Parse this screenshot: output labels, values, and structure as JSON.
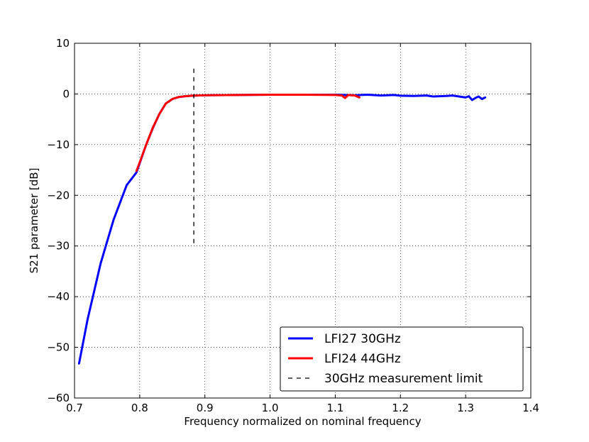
{
  "chart_data": {
    "type": "line",
    "xlabel": "Frequency normalized on nominal frequency",
    "ylabel": "S21 parameter [dB]",
    "xlim": [
      0.7,
      1.4
    ],
    "ylim": [
      -60,
      10
    ],
    "x_ticks": [
      "0.7",
      "0.8",
      "0.9",
      "1.0",
      "1.1",
      "1.2",
      "1.3",
      "1.4"
    ],
    "y_ticks": [
      "10",
      "0",
      "−10",
      "−20",
      "−30",
      "−40",
      "−50",
      "−60"
    ],
    "x_tick_values": [
      0.7,
      0.8,
      0.9,
      1.0,
      1.1,
      1.2,
      1.3,
      1.4
    ],
    "y_tick_values": [
      10,
      0,
      -10,
      -20,
      -30,
      -40,
      -50,
      -60
    ],
    "grid": true,
    "legend_position": "bottom-right",
    "series": [
      {
        "name": "LFI27 30GHz",
        "color": "#0000ff",
        "style": "solid",
        "x": [
          0.707,
          0.72,
          0.74,
          0.76,
          0.78,
          0.795,
          0.81,
          0.82,
          0.83,
          0.84,
          0.85,
          0.86,
          0.87,
          0.88,
          0.9,
          0.95,
          1.0,
          1.05,
          1.1,
          1.13,
          1.15,
          1.17,
          1.19,
          1.2,
          1.22,
          1.24,
          1.25,
          1.27,
          1.28,
          1.3,
          1.305,
          1.31,
          1.315,
          1.32,
          1.325,
          1.33
        ],
        "y": [
          -53.2,
          -44.5,
          -33.5,
          -24.8,
          -18.0,
          -15.5,
          -10.0,
          -6.8,
          -4.0,
          -1.9,
          -1.0,
          -0.6,
          -0.45,
          -0.35,
          -0.25,
          -0.2,
          -0.15,
          -0.15,
          -0.15,
          -0.25,
          -0.15,
          -0.3,
          -0.2,
          -0.35,
          -0.4,
          -0.3,
          -0.5,
          -0.4,
          -0.3,
          -0.7,
          -0.45,
          -1.2,
          -0.8,
          -0.5,
          -1.0,
          -0.7
        ]
      },
      {
        "name": "LFI24 44GHz",
        "color": "#ff0000",
        "style": "solid",
        "x": [
          0.795,
          0.8,
          0.81,
          0.82,
          0.83,
          0.84,
          0.85,
          0.86,
          0.87,
          0.88,
          0.9,
          0.95,
          1.0,
          1.05,
          1.1,
          1.11,
          1.115,
          1.12,
          1.13,
          1.137
        ],
        "y": [
          -15.2,
          -13.5,
          -10.0,
          -6.7,
          -4.0,
          -1.9,
          -1.0,
          -0.6,
          -0.45,
          -0.35,
          -0.25,
          -0.2,
          -0.15,
          -0.15,
          -0.2,
          -0.3,
          -0.8,
          -0.2,
          -0.3,
          -0.7
        ]
      },
      {
        "name": "30GHz measurement limit",
        "color": "#000000",
        "style": "dashed",
        "x": [
          0.883,
          0.883
        ],
        "y": [
          5,
          -30
        ]
      }
    ]
  }
}
